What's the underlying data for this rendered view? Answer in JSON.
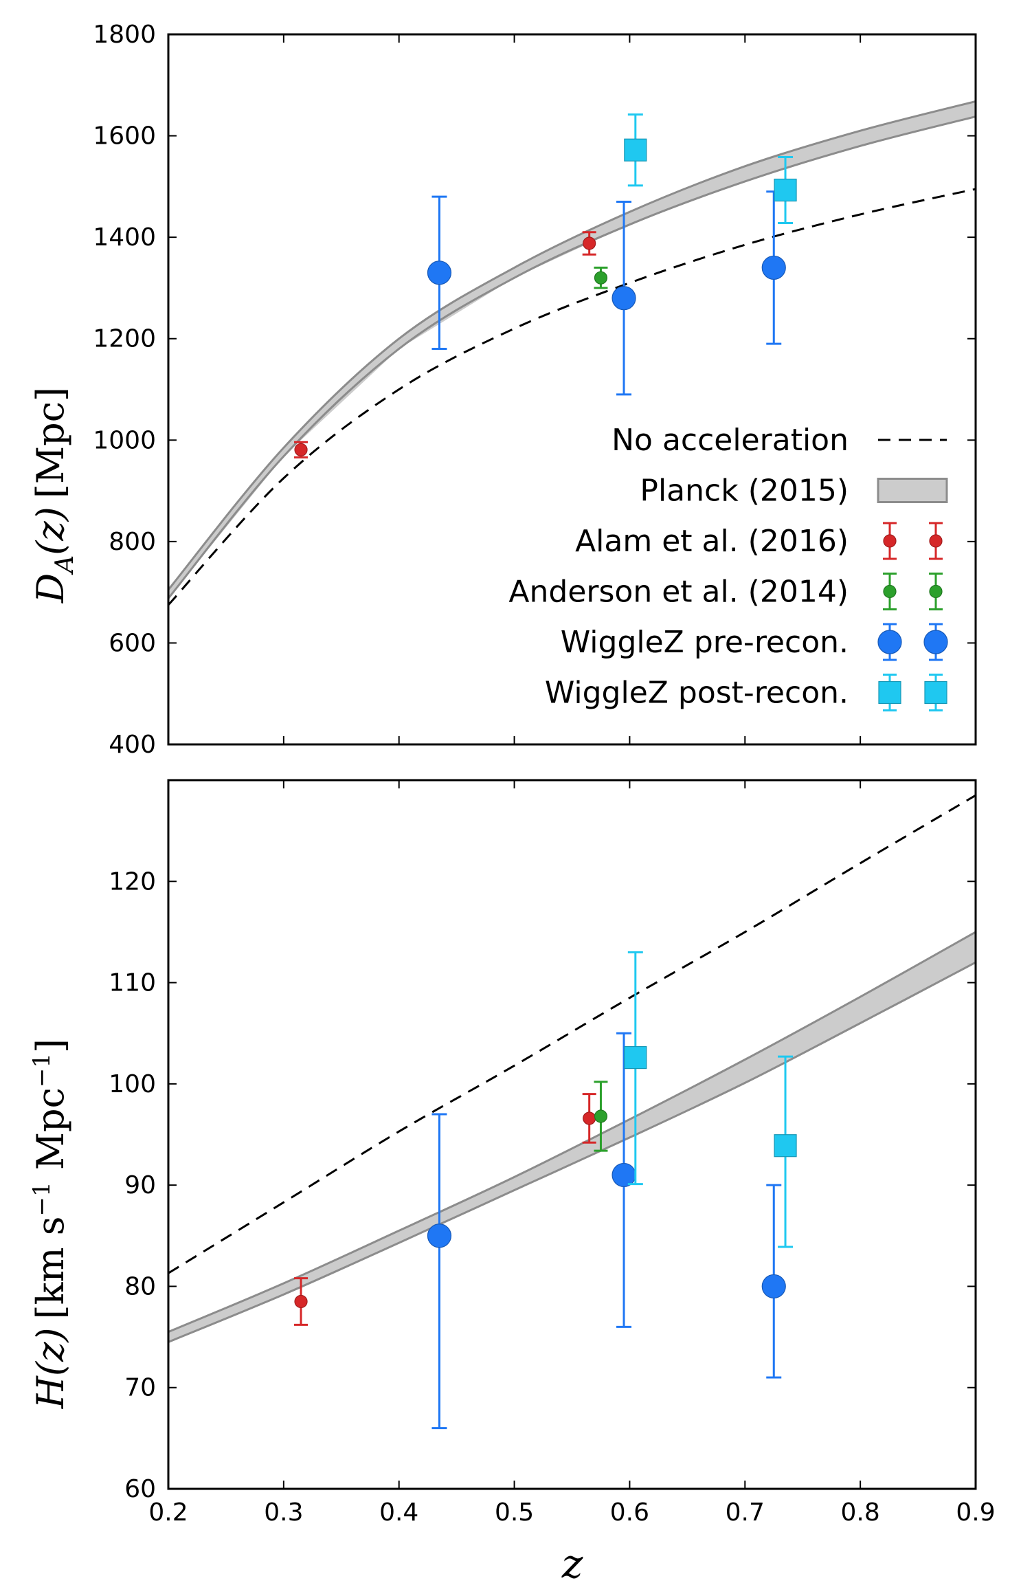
{
  "chart_data": [
    {
      "type": "scatter",
      "ylabel": "D_A(z) [Mpc]",
      "ylabel_parts": {
        "sym": "D",
        "sub": "A",
        "arg": "(z)",
        "unit": "[Mpc]"
      },
      "xlim": [
        0.2,
        0.9
      ],
      "ylim": [
        400,
        1800
      ],
      "yticks": [
        "400",
        "600",
        "800",
        "1000",
        "1200",
        "1400",
        "1600",
        "1800"
      ],
      "legend_position": "lower right",
      "legend": [
        {
          "label": "No acceleration",
          "kind": "dashed"
        },
        {
          "label": "Planck (2015)",
          "kind": "band"
        },
        {
          "label": "Alam et al. (2016)",
          "kind": "point-small",
          "color": "#d62728"
        },
        {
          "label": "Anderson et al. (2014)",
          "kind": "point-small",
          "color": "#2ca02c"
        },
        {
          "label": "WiggleZ pre-recon.",
          "kind": "circle",
          "color": "#1f77f4"
        },
        {
          "label": "WiggleZ post-recon.",
          "kind": "square",
          "color": "#1fc8f0"
        }
      ],
      "curves": {
        "no_acceleration": {
          "x": [
            0.2,
            0.3,
            0.4,
            0.5,
            0.6,
            0.7,
            0.8,
            0.9
          ],
          "y": [
            675,
            925,
            1100,
            1220,
            1310,
            1385,
            1445,
            1495
          ]
        },
        "planck_upper": {
          "x": [
            0.2,
            0.3,
            0.4,
            0.5,
            0.6,
            0.7,
            0.8,
            0.9
          ],
          "y": [
            705,
            985,
            1200,
            1340,
            1450,
            1540,
            1610,
            1668
          ]
        },
        "planck_lower": {
          "x": [
            0.2,
            0.3,
            0.4,
            0.5,
            0.6,
            0.7,
            0.8,
            0.9
          ],
          "y": [
            688,
            968,
            1180,
            1320,
            1425,
            1510,
            1580,
            1638
          ]
        }
      },
      "series": [
        {
          "name": "Alam et al. (2016)",
          "marker": "small",
          "color": "#d62728",
          "points": [
            {
              "x": 0.315,
              "y": 981,
              "err": 15
            },
            {
              "x": 0.565,
              "y": 1388,
              "err": 22
            }
          ]
        },
        {
          "name": "Anderson et al. (2014)",
          "marker": "small",
          "color": "#2ca02c",
          "points": [
            {
              "x": 0.575,
              "y": 1320,
              "err": 20
            }
          ]
        },
        {
          "name": "WiggleZ pre-recon.",
          "marker": "circle",
          "color": "#1f77f4",
          "points": [
            {
              "x": 0.435,
              "y": 1330,
              "err": 150
            },
            {
              "x": 0.595,
              "y": 1280,
              "err": 190
            },
            {
              "x": 0.725,
              "y": 1340,
              "err": 150
            }
          ]
        },
        {
          "name": "WiggleZ post-recon.",
          "marker": "square",
          "color": "#1fc8f0",
          "points": [
            {
              "x": 0.605,
              "y": 1572,
              "err": 70
            },
            {
              "x": 0.735,
              "y": 1493,
              "err": 65
            }
          ]
        }
      ]
    },
    {
      "type": "scatter",
      "xlabel": "z",
      "ylabel": "H(z) [km s^-1 Mpc^-1]",
      "ylabel_parts": {
        "sym": "H",
        "arg": "(z)",
        "unit": "[km s",
        "sup1": "−1",
        "mid": " Mpc",
        "sup2": "−1",
        "end": "]"
      },
      "xlim": [
        0.2,
        0.9
      ],
      "ylim": [
        60,
        130
      ],
      "xticks": [
        "0.2",
        "0.3",
        "0.4",
        "0.5",
        "0.6",
        "0.7",
        "0.8",
        "0.9"
      ],
      "yticks": [
        "60",
        "70",
        "80",
        "90",
        "100",
        "110",
        "120"
      ],
      "curves": {
        "no_acceleration": {
          "x": [
            0.2,
            0.3,
            0.4,
            0.5,
            0.6,
            0.7,
            0.8,
            0.9
          ],
          "y": [
            81.3,
            88.3,
            95.3,
            101.8,
            108.5,
            115.0,
            121.8,
            128.5
          ]
        },
        "planck_upper": {
          "x": [
            0.2,
            0.3,
            0.4,
            0.5,
            0.6,
            0.7,
            0.8,
            0.9
          ],
          "y": [
            75.5,
            80.3,
            85.5,
            90.8,
            96.5,
            102.4,
            108.6,
            115.0
          ]
        },
        "planck_lower": {
          "x": [
            0.2,
            0.3,
            0.4,
            0.5,
            0.6,
            0.7,
            0.8,
            0.9
          ],
          "y": [
            74.5,
            79.2,
            84.3,
            89.5,
            94.7,
            100.1,
            106.0,
            112.0
          ]
        }
      },
      "series": [
        {
          "name": "Alam et al. (2016)",
          "marker": "small",
          "color": "#d62728",
          "points": [
            {
              "x": 0.315,
              "y": 78.5,
              "err": 2.3
            },
            {
              "x": 0.565,
              "y": 96.6,
              "err": 2.4
            }
          ]
        },
        {
          "name": "Anderson et al. (2014)",
          "marker": "small",
          "color": "#2ca02c",
          "points": [
            {
              "x": 0.575,
              "y": 96.8,
              "err": 3.4
            }
          ]
        },
        {
          "name": "WiggleZ pre-recon.",
          "marker": "circle",
          "color": "#1f77f4",
          "points": [
            {
              "x": 0.435,
              "y": 85.0,
              "err": 12.0,
              "err_lo": 19.0
            },
            {
              "x": 0.595,
              "y": 91.0,
              "err": 14.0,
              "err_lo": 15.0
            },
            {
              "x": 0.725,
              "y": 80.0,
              "err": 10.0,
              "err_lo": 9.0
            }
          ]
        },
        {
          "name": "WiggleZ post-recon.",
          "marker": "square",
          "color": "#1fc8f0",
          "points": [
            {
              "x": 0.605,
              "y": 102.6,
              "err": 10.4,
              "err_lo": 12.5
            },
            {
              "x": 0.735,
              "y": 93.9,
              "err": 8.8,
              "err_lo": 10.0
            }
          ]
        }
      ]
    }
  ]
}
